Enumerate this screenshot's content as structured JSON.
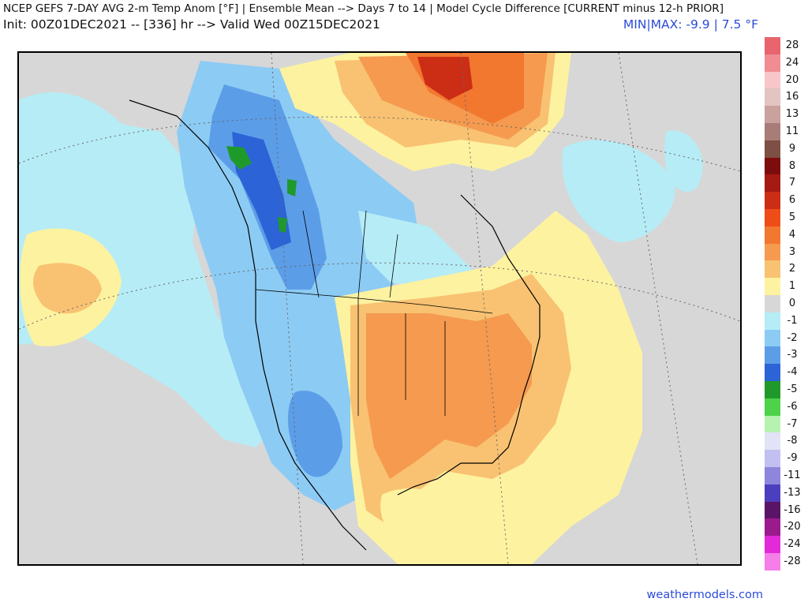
{
  "header": {
    "title": "NCEP GEFS 7-DAY AVG 2-m Temp Anom [°F] | Ensemble Mean --> Days 7 to 14 | Model Cycle Difference [CURRENT minus 12-h PRIOR]",
    "subtitle": "Init: 00Z01DEC2021 -- [336] hr --> Valid Wed 00Z15DEC2021",
    "minmax": "MIN|MAX: -9.9 | 7.5 °F"
  },
  "legend": {
    "items": [
      {
        "label": "28",
        "color": "#e8656d"
      },
      {
        "label": "24",
        "color": "#f18c93"
      },
      {
        "label": "20",
        "color": "#f8c5c8"
      },
      {
        "label": "16",
        "color": "#e2c4c2"
      },
      {
        "label": "13",
        "color": "#c9a19d"
      },
      {
        "label": "11",
        "color": "#a97d77"
      },
      {
        "label": "9",
        "color": "#7e4f44"
      },
      {
        "label": "8",
        "color": "#7d0d0d"
      },
      {
        "label": "7",
        "color": "#a51a12"
      },
      {
        "label": "6",
        "color": "#cc2d15"
      },
      {
        "label": "5",
        "color": "#ee4d17"
      },
      {
        "label": "4",
        "color": "#f2772f"
      },
      {
        "label": "3",
        "color": "#f59a4f"
      },
      {
        "label": "2",
        "color": "#f8c272"
      },
      {
        "label": "1",
        "color": "#fdf2a0"
      },
      {
        "label": "0",
        "color": "#d7d7d7"
      },
      {
        "label": "-1",
        "color": "#b6ecf6"
      },
      {
        "label": "-2",
        "color": "#8ccbf4"
      },
      {
        "label": "-3",
        "color": "#5c9de8"
      },
      {
        "label": "-4",
        "color": "#2c63d6"
      },
      {
        "label": "-5",
        "color": "#1f9a2a"
      },
      {
        "label": "-6",
        "color": "#4dd24a"
      },
      {
        "label": "-7",
        "color": "#b6f2b0"
      },
      {
        "label": "-8",
        "color": "#e2e3f7"
      },
      {
        "label": "-9",
        "color": "#c2c0f0"
      },
      {
        "label": "-11",
        "color": "#8e86dd"
      },
      {
        "label": "-13",
        "color": "#4c3fbf"
      },
      {
        "label": "-16",
        "color": "#5a1466"
      },
      {
        "label": "-20",
        "color": "#9b1a8e"
      },
      {
        "label": "-24",
        "color": "#e22ad8"
      },
      {
        "label": "-28",
        "color": "#f57ee9"
      }
    ]
  },
  "credit": "weathermodels.com"
}
